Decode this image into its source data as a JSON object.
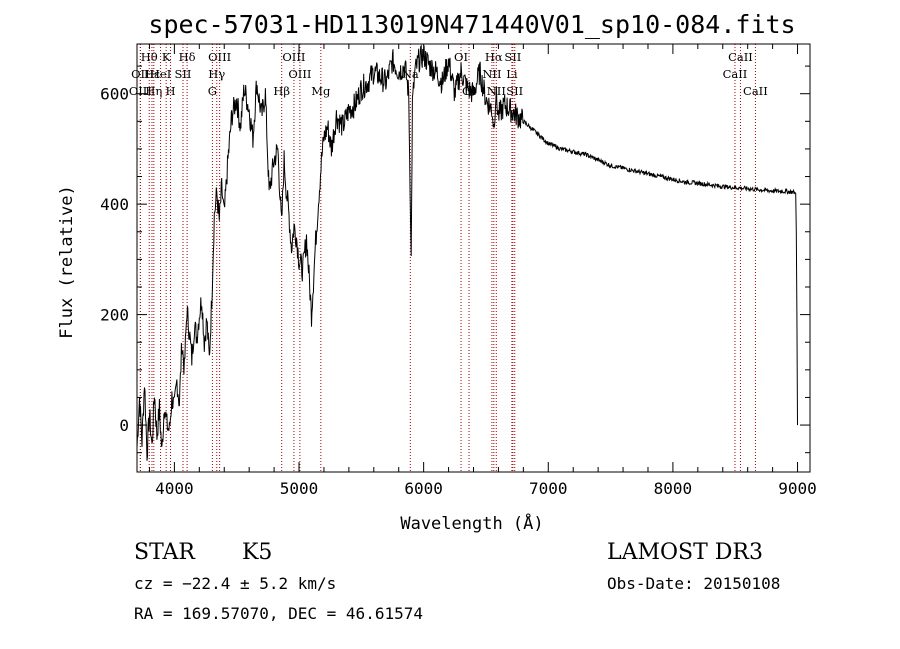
{
  "chart_data": {
    "type": "line",
    "title": "spec-57031-HD113019N471440V01_sp10-084.fits",
    "xlabel": "Wavelength (Å)",
    "ylabel": "Flux (relative)",
    "xlim": [
      3700,
      9100
    ],
    "ylim": [
      -85,
      690
    ],
    "x_ticks": [
      {
        "value": 4000,
        "label": "4000"
      },
      {
        "value": 5000,
        "label": "5000"
      },
      {
        "value": 6000,
        "label": "6000"
      },
      {
        "value": 7000,
        "label": "7000"
      },
      {
        "value": 8000,
        "label": "8000"
      },
      {
        "value": 9000,
        "label": "9000"
      }
    ],
    "y_ticks": [
      {
        "value": 0,
        "label": "0"
      },
      {
        "value": 200,
        "label": "200"
      },
      {
        "value": 400,
        "label": "400"
      },
      {
        "value": 600,
        "label": "600"
      }
    ],
    "grid": false,
    "line_color": "#000000",
    "marker_color": "#aa0000",
    "series": [
      {
        "x": [
          3700,
          3720,
          3740,
          3760,
          3780,
          3800,
          3820,
          3840,
          3860,
          3880,
          3900,
          3920,
          3940,
          3960,
          3980,
          4000,
          4020,
          4040,
          4060,
          4080,
          4100,
          4120,
          4140,
          4160,
          4180,
          4200,
          4220,
          4240,
          4260,
          4280,
          4300,
          4320,
          4340,
          4360,
          4380,
          4400,
          4430,
          4460,
          4500,
          4530,
          4560,
          4600,
          4630,
          4660,
          4700,
          4730,
          4760,
          4800,
          4830,
          4860,
          4880,
          4900,
          4920,
          4940,
          4960,
          4980,
          5000,
          5030,
          5060,
          5100,
          5130,
          5160,
          5180,
          5200,
          5230,
          5260,
          5300,
          5350,
          5400,
          5450,
          5500,
          5550,
          5600,
          5650,
          5700,
          5750,
          5800,
          5850,
          5880,
          5895,
          5900,
          5910,
          5930,
          5960,
          6000,
          6050,
          6100,
          6150,
          6200,
          6250,
          6300,
          6350,
          6400,
          6450,
          6500,
          6550,
          6563,
          6580,
          6600,
          6650,
          6700,
          6750,
          6800,
          6850,
          6900,
          6950,
          7000,
          7100,
          7200,
          7300,
          7400,
          7500,
          7600,
          7700,
          7800,
          7900,
          8000,
          8100,
          8200,
          8300,
          8400,
          8500,
          8600,
          8700,
          8800,
          8900,
          8960,
          8985,
          8990,
          8995,
          9000
        ],
        "y": [
          -40,
          50,
          -30,
          80,
          -50,
          20,
          -40,
          60,
          -20,
          30,
          -50,
          40,
          0,
          -10,
          50,
          30,
          80,
          40,
          150,
          100,
          210,
          170,
          120,
          180,
          160,
          200,
          230,
          150,
          190,
          120,
          230,
          380,
          420,
          370,
          430,
          380,
          480,
          560,
          590,
          540,
          610,
          570,
          520,
          620,
          560,
          600,
          420,
          480,
          500,
          360,
          480,
          420,
          380,
          320,
          360,
          340,
          300,
          280,
          340,
          200,
          320,
          420,
          480,
          520,
          540,
          500,
          560,
          540,
          570,
          580,
          610,
          620,
          640,
          630,
          620,
          660,
          640,
          650,
          600,
          380,
          300,
          580,
          640,
          660,
          670,
          650,
          640,
          620,
          660,
          600,
          640,
          610,
          600,
          640,
          590,
          570,
          540,
          600,
          560,
          580,
          570,
          560,
          550,
          540,
          530,
          520,
          510,
          500,
          495,
          490,
          480,
          470,
          465,
          460,
          455,
          450,
          445,
          440,
          438,
          435,
          432,
          430,
          428,
          426,
          424,
          423,
          422,
          420,
          350,
          200,
          0
        ]
      }
    ],
    "line_markers": [
      {
        "label": "Hθ",
        "x": 3798,
        "row": 0
      },
      {
        "label": "OII",
        "x": 3727,
        "row": 1
      },
      {
        "label": "OIII",
        "x": 3727,
        "row": 2
      },
      {
        "label": "Hε",
        "x": 3820,
        "row": 1
      },
      {
        "label": "Hη",
        "x": 3835,
        "row": 2
      },
      {
        "label": "K",
        "x": 3934,
        "row": 0
      },
      {
        "label": "HeI",
        "x": 3889,
        "row": 1
      },
      {
        "label": "H",
        "x": 3969,
        "row": 2
      },
      {
        "label": "SII",
        "x": 4069,
        "row": 1
      },
      {
        "label": "Hδ",
        "x": 4102,
        "row": 0
      },
      {
        "label": "OIII",
        "x": 4363,
        "row": 0
      },
      {
        "label": "Hγ",
        "x": 4340,
        "row": 1
      },
      {
        "label": "G",
        "x": 4305,
        "row": 2
      },
      {
        "label": "Hβ",
        "x": 4861,
        "row": 2
      },
      {
        "label": "OIII",
        "x": 4959,
        "row": 0
      },
      {
        "label": "OIII",
        "x": 5007,
        "row": 1
      },
      {
        "label": "Mg",
        "x": 5175,
        "row": 2
      },
      {
        "label": "Na",
        "x": 5893,
        "row": 1
      },
      {
        "label": "OI",
        "x": 6300,
        "row": 0
      },
      {
        "label": "OI",
        "x": 6364,
        "row": 2
      },
      {
        "label": "Hα",
        "x": 6563,
        "row": 0
      },
      {
        "label": "NII",
        "x": 6548,
        "row": 1
      },
      {
        "label": "NII",
        "x": 6583,
        "row": 2
      },
      {
        "label": "SII",
        "x": 6716,
        "row": 0
      },
      {
        "label": "Li",
        "x": 6708,
        "row": 1
      },
      {
        "label": "SII",
        "x": 6731,
        "row": 2
      },
      {
        "label": "CaII",
        "x": 8542,
        "row": 0
      },
      {
        "label": "CaII",
        "x": 8498,
        "row": 1
      },
      {
        "label": "CaII",
        "x": 8662,
        "row": 2
      }
    ]
  },
  "info": {
    "object_class": "STAR",
    "subclass": "K5",
    "survey": "LAMOST DR3",
    "cz": "cz = −22.4 ± 5.2 km/s",
    "obs_date": "Obs-Date: 20150108",
    "coords": "RA = 169.57070, DEC =  46.61574"
  }
}
